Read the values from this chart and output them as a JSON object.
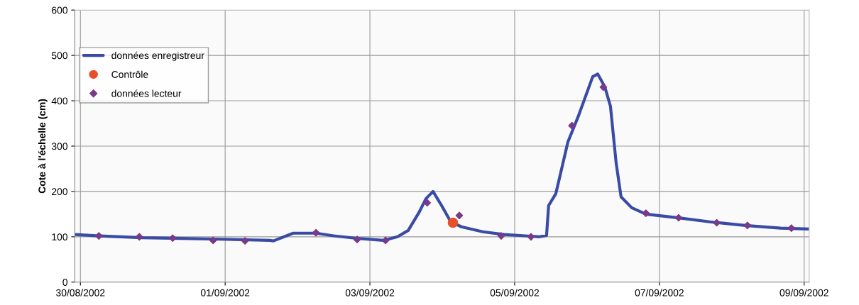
{
  "chart_data": {
    "type": "line",
    "ylabel": "Cote à l'échelle (cm)",
    "xlim": [
      "2002-08-29T22:07",
      "2002-09-09T01:40"
    ],
    "ylim": [
      0,
      600
    ],
    "xticks": [
      {
        "value": "2002-08-30",
        "label": "30/08/2002"
      },
      {
        "value": "2002-09-01",
        "label": "01/09/2002"
      },
      {
        "value": "2002-09-03",
        "label": "03/09/2002"
      },
      {
        "value": "2002-09-05",
        "label": "05/09/2002"
      },
      {
        "value": "2002-09-07",
        "label": "07/09/2002"
      },
      {
        "value": "2002-09-09",
        "label": "09/09/2002"
      }
    ],
    "yticks": [
      0,
      100,
      200,
      300,
      400,
      500,
      600
    ],
    "grid": true,
    "legend": "top left",
    "series": [
      {
        "name": "données enregistreur",
        "color": "#3a4ba6",
        "marker": "none",
        "line_style": "solid",
        "x": [
          "2002-08-29T22:07",
          "2002-08-30T06:21",
          "2002-08-30T20:28",
          "2002-08-31T20:00",
          "2002-09-01T14:50",
          "2002-09-01T16:00",
          "2002-09-01T22:35",
          "2002-09-02T06:07",
          "2002-09-02T12:00",
          "2002-09-02T19:04",
          "2002-09-03T04:28",
          "2002-09-03T09:10",
          "2002-09-03T12:42",
          "2002-09-03T16:14",
          "2002-09-03T18:35",
          "2002-09-03T20:56",
          "2002-09-03T23:46",
          "2002-09-04T02:49",
          "2002-09-04T06:21",
          "2002-09-04T13:25",
          "2002-09-04T20:28",
          "2002-09-05T03:32",
          "2002-09-05T08:14",
          "2002-09-05T10:35",
          "2002-09-05T11:16",
          "2002-09-05T13:39",
          "2002-09-05T17:39",
          "2002-09-05T21:11",
          "2002-09-06T01:53",
          "2002-09-06T03:32",
          "2002-09-06T05:53",
          "2002-09-06T07:46",
          "2002-09-06T09:39",
          "2002-09-06T11:17",
          "2002-09-06T14:49",
          "2002-09-06T19:31",
          "2002-09-07T07:18",
          "2002-09-07T16:42",
          "2002-09-08T04:28",
          "2002-09-08T16:14",
          "2002-09-09T01:38"
        ],
        "values": [
          105,
          102,
          98,
          95,
          92,
          91,
          108,
          108,
          102,
          97,
          92,
          100,
          114,
          153,
          184,
          200,
          169,
          133,
          122,
          111,
          105,
          102,
          100,
          103,
          169,
          195,
          309,
          367,
          453,
          459,
          431,
          388,
          263,
          188,
          164,
          150,
          141,
          133,
          125,
          119,
          117
        ]
      },
      {
        "name": "Contrôle",
        "type": "scatter",
        "color": "#e8502a",
        "marker": "circle",
        "x": [
          "2002-09-04T03:32"
        ],
        "values": [
          131
        ]
      },
      {
        "name": "données lecteur",
        "type": "scatter",
        "color": "#7a3a8a",
        "marker": "diamond",
        "x": [
          "2002-08-30T06:07",
          "2002-08-30T19:32",
          "2002-08-31T06:35",
          "2002-08-31T20:00",
          "2002-09-01T06:35",
          "2002-09-02T06:07",
          "2002-09-02T19:46",
          "2002-09-03T05:11",
          "2002-09-03T19:00",
          "2002-09-04T05:39",
          "2002-09-04T19:32",
          "2002-09-05T05:25",
          "2002-09-05T19:00",
          "2002-09-06T05:25",
          "2002-09-06T19:31",
          "2002-09-07T06:22",
          "2002-09-07T19:00",
          "2002-09-08T05:11",
          "2002-09-08T19:46"
        ],
        "values": [
          102,
          100,
          97,
          92,
          91,
          109,
          94,
          92,
          175,
          147,
          102,
          100,
          345,
          430,
          152,
          142,
          131,
          125,
          119
        ]
      }
    ]
  }
}
